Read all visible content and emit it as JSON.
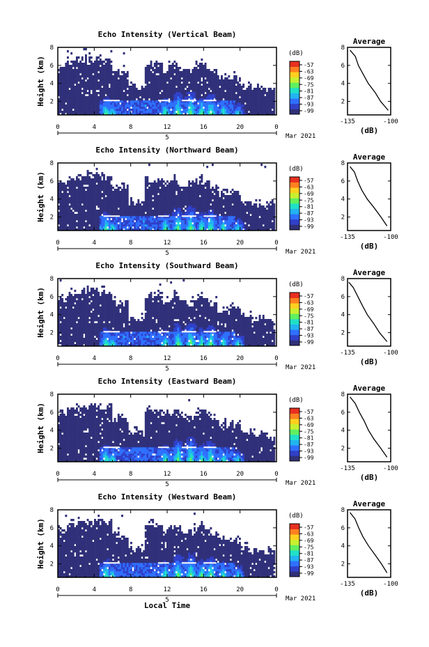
{
  "figure": {
    "x_axis_label": "Local Time",
    "date_label": "Mar 2021",
    "day_label": "5",
    "colorbar_unit": "(dB)",
    "colorbar_ticks": [
      "-57",
      "-63",
      "-69",
      "-75",
      "-81",
      "-87",
      "-93",
      "-99"
    ],
    "colormap": [
      "#30307a",
      "#3040c8",
      "#2f70ff",
      "#22b4f0",
      "#20e0c8",
      "#60f060",
      "#c8f030",
      "#ffd020",
      "#ff8020",
      "#e83020"
    ],
    "avg_title": "Average",
    "avg_xlabel": "(dB)",
    "avg_x_ticks": [
      "-135",
      "-100"
    ],
    "avg_y_ticks": [
      "2",
      "4",
      "6",
      "8"
    ],
    "height_label": "Height (km)",
    "height_ticks": [
      "2",
      "4",
      "6",
      "8"
    ],
    "x_ticks": [
      "0",
      "4",
      "8",
      "12",
      "16",
      "20",
      "0"
    ]
  },
  "chart_data": [
    {
      "type": "heatmap",
      "title": "Echo Intensity (Vertical Beam)",
      "xlabel": "",
      "ylabel": "Height (km)",
      "xlim": [
        0,
        24
      ],
      "ylim": [
        0.5,
        8
      ],
      "clim": [
        -99,
        -57
      ],
      "average_profile": {
        "xlim": [
          -135,
          -100
        ],
        "height": [
          1,
          2,
          3,
          4,
          5,
          6,
          7,
          7.7
        ],
        "value": [
          -102,
          -108,
          -113,
          -118,
          -122,
          -126,
          -129,
          -133
        ]
      }
    },
    {
      "type": "heatmap",
      "title": "Echo Intensity (Northward Beam)",
      "xlabel": "",
      "ylabel": "Height (km)",
      "xlim": [
        0,
        24
      ],
      "ylim": [
        0.5,
        8
      ],
      "clim": [
        -99,
        -57
      ],
      "average_profile": {
        "xlim": [
          -135,
          -100
        ],
        "height": [
          1,
          2,
          3,
          4,
          5,
          6,
          7,
          7.6
        ],
        "value": [
          -103,
          -108,
          -113,
          -119,
          -123,
          -127,
          -130,
          -133
        ]
      }
    },
    {
      "type": "heatmap",
      "title": "Echo Intensity (Southward Beam)",
      "xlabel": "",
      "ylabel": "Height (km)",
      "xlim": [
        0,
        24
      ],
      "ylim": [
        0.5,
        8
      ],
      "clim": [
        -99,
        -57
      ],
      "average_profile": {
        "xlim": [
          -135,
          -100
        ],
        "height": [
          1,
          2,
          3,
          4,
          5,
          6,
          7,
          7.6
        ],
        "value": [
          -103,
          -109,
          -114,
          -119,
          -123,
          -127,
          -130,
          -134
        ]
      }
    },
    {
      "type": "heatmap",
      "title": "Echo Intensity (Eastward Beam)",
      "xlabel": "",
      "ylabel": "Height (km)",
      "xlim": [
        0,
        24
      ],
      "ylim": [
        0.5,
        8
      ],
      "clim": [
        -99,
        -57
      ],
      "average_profile": {
        "xlim": [
          -135,
          -100
        ],
        "height": [
          1,
          2,
          3,
          4,
          5,
          6,
          7,
          7.7
        ],
        "value": [
          -103,
          -108,
          -113,
          -118,
          -122,
          -126,
          -129,
          -133
        ]
      }
    },
    {
      "type": "heatmap",
      "title": "Echo Intensity (Westward Beam)",
      "xlabel": "Local Time",
      "ylabel": "Height (km)",
      "xlim": [
        0,
        24
      ],
      "ylim": [
        0.5,
        8
      ],
      "clim": [
        -99,
        -57
      ],
      "average_profile": {
        "xlim": [
          -135,
          -100
        ],
        "height": [
          1,
          2,
          3,
          4,
          5,
          6,
          7,
          7.7
        ],
        "value": [
          -103,
          -108,
          -113,
          -118,
          -122,
          -126,
          -129,
          -133
        ]
      }
    }
  ]
}
